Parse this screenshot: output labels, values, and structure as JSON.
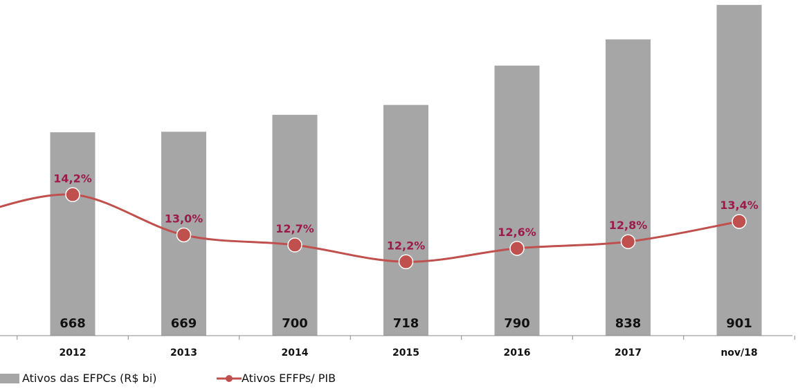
{
  "chart_data": {
    "type": "bar+line",
    "title": "",
    "categories": [
      "2012",
      "2013",
      "2014",
      "2015",
      "2016",
      "2017",
      "nov/18"
    ],
    "series": [
      {
        "name": "Ativos das EFPCs (R$ bi)",
        "type": "bar",
        "axis": "primary",
        "values": [
          668,
          669,
          700,
          718,
          790,
          838,
          901
        ],
        "labels": [
          "668",
          "669",
          "700",
          "718",
          "790",
          "838",
          "901"
        ],
        "color": "#a6a6a6"
      },
      {
        "name": "Ativos EFFPs/ PIB",
        "type": "line",
        "axis": "secondary",
        "values": [
          14.2,
          13.0,
          12.7,
          12.2,
          12.6,
          12.8,
          13.4
        ],
        "labels": [
          "14,2%",
          "13,0%",
          "12,7%",
          "12,2%",
          "12,6%",
          "12,8%",
          "13,4%"
        ],
        "color": "#c0504d"
      }
    ],
    "ylim": [
      296,
      910
    ],
    "y2lim": [
      10,
      20
    ],
    "grid": false,
    "legend": "bottom-left",
    "label_color": "#9b1b4a"
  }
}
